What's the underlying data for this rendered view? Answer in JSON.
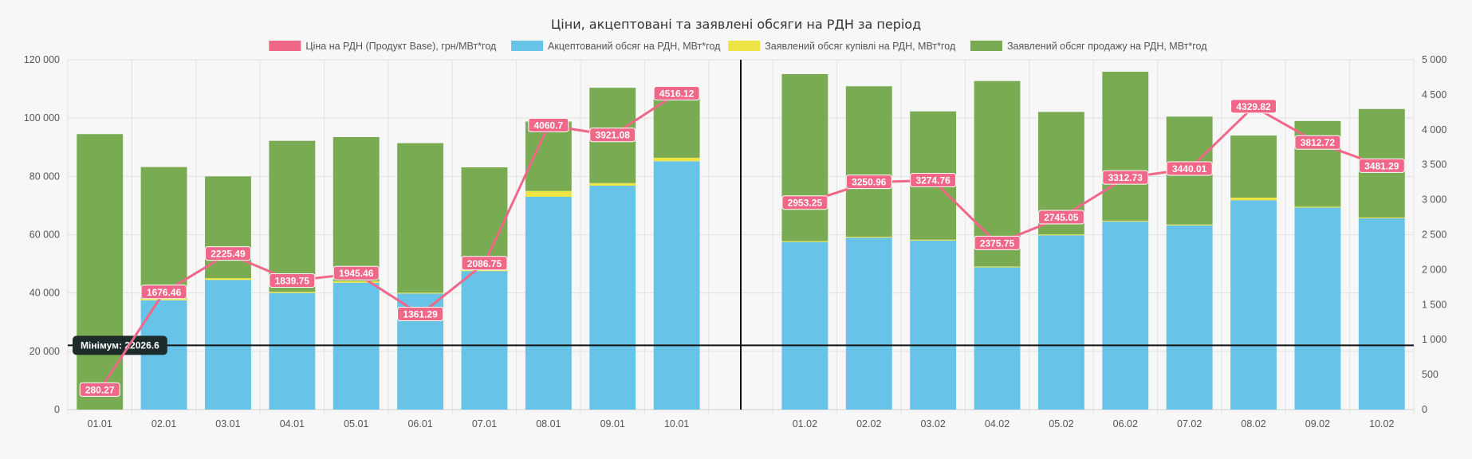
{
  "chart_data": {
    "type": "bar",
    "title": "Ціни, акцептовані та заявлені обсяги на РДН за період",
    "categories": [
      "01.01",
      "02.01",
      "03.01",
      "04.01",
      "05.01",
      "06.01",
      "07.01",
      "08.01",
      "09.01",
      "10.01",
      "",
      "01.02",
      "02.02",
      "03.02",
      "04.02",
      "05.02",
      "06.02",
      "07.02",
      "08.02",
      "09.02",
      "10.02"
    ],
    "y_left": {
      "min": 0,
      "max": 120000,
      "ticks": [
        "0",
        "20 000",
        "40 000",
        "60 000",
        "80 000",
        "100 000",
        "120 000"
      ],
      "tick_values": [
        0,
        20000,
        40000,
        60000,
        80000,
        100000,
        120000
      ]
    },
    "y_right": {
      "min": 0,
      "max": 5000,
      "ticks": [
        "0",
        "500",
        "1 000",
        "1 500",
        "2 000",
        "2 500",
        "3 000",
        "3 500",
        "4 000",
        "4 500",
        "5 000"
      ],
      "tick_values": [
        0,
        500,
        1000,
        1500,
        2000,
        2500,
        3000,
        3500,
        4000,
        4500,
        5000
      ]
    },
    "grid": true,
    "legend_position": "top",
    "series": [
      {
        "name": "Ціна на РДН (Продукт Base), грн/МВт*год",
        "type": "line",
        "axis": "right",
        "color": "#f06788",
        "values": [
          280.27,
          1676.46,
          2225.49,
          1839.75,
          1945.46,
          1361.29,
          2086.75,
          4060.7,
          3921.08,
          4516.12,
          null,
          2953.25,
          3250.96,
          3274.76,
          2375.75,
          2745.05,
          3312.73,
          3440.01,
          4329.82,
          3812.72,
          3481.29
        ],
        "labels": [
          "280.27",
          "1676.46",
          "2225.49",
          "1839.75",
          "1945.46",
          "1361.29",
          "2086.75",
          "4060.7",
          "3921.08",
          "4516.12",
          "",
          "2953.25",
          "3250.96",
          "3274.76",
          "2375.75",
          "2745.05",
          "3312.73",
          "3440.01",
          "4329.82",
          "3812.72",
          "3481.29"
        ]
      },
      {
        "name": "Акцептований обсяг на РДН, МВт*год",
        "type": "bar",
        "axis": "left",
        "color": "#68c3e8",
        "values": [
          0,
          37500,
          44500,
          40000,
          43500,
          39800,
          47500,
          73000,
          76800,
          85200,
          null,
          57500,
          59000,
          58000,
          48800,
          59800,
          64500,
          63200,
          71800,
          69300,
          65600
        ]
      },
      {
        "name": "Заявлений обсяг купівлі на РДН, МВт*год",
        "type": "bar",
        "axis": "left",
        "color": "#ece545",
        "values": [
          0,
          500,
          600,
          400,
          500,
          300,
          800,
          2000,
          900,
          1200,
          null,
          300,
          300,
          300,
          300,
          300,
          300,
          300,
          900,
          300,
          300
        ]
      },
      {
        "name": "Заявлений обсяг продажу на РДН, МВт*год",
        "type": "bar",
        "axis": "left",
        "color": "#78ab52",
        "values": [
          94500,
          45200,
          34900,
          51800,
          49500,
          51300,
          34800,
          23800,
          32700,
          22600,
          null,
          57300,
          51600,
          44000,
          63600,
          42000,
          51100,
          37000,
          21300,
          29400,
          37200
        ]
      }
    ],
    "annotations": [
      {
        "type": "horizontal_line",
        "axis": "left",
        "value": 22026.6,
        "label": "Мінімум: 22026.6"
      },
      {
        "type": "vertical_line",
        "position_category": ""
      }
    ]
  }
}
